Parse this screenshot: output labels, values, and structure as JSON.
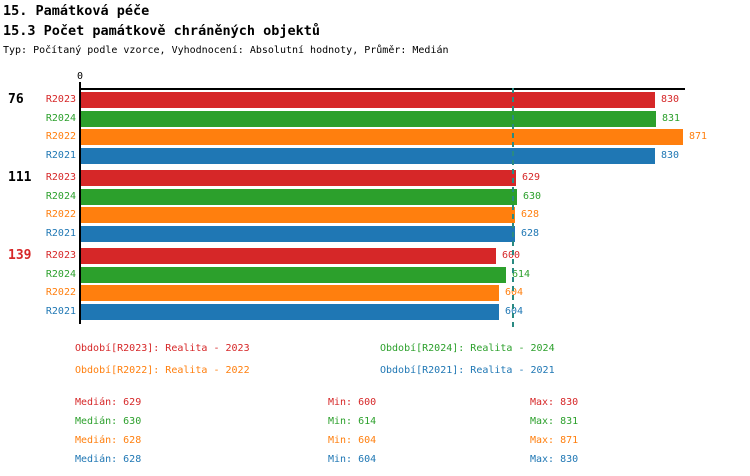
{
  "header": {
    "title1": "15. Památková péče",
    "title2": "15.3 Počet památkově chráněných objektů",
    "subtitle": "Typ: Počítaný podle vzorce, Vyhodnocení: Absolutní hodnoty, Průměr: Medián"
  },
  "colors": {
    "r2023": "#d62728",
    "r2024": "#2ca02c",
    "r2022": "#ff7f0e",
    "r2021": "#1f77b4",
    "median_line": "#2a8a82",
    "axis": "#000000"
  },
  "chart_data": {
    "type": "bar",
    "orientation": "horizontal",
    "title": "15.3 Počet památkově chráněných objektů",
    "x_axis": {
      "zero_label": "0",
      "min": 0,
      "max_extent": 875,
      "grid": false
    },
    "median_line_value": 628.5,
    "series_order": [
      "R2023",
      "R2024",
      "R2022",
      "R2021"
    ],
    "groups": [
      {
        "label": "76",
        "label_color": "#000000",
        "bars": [
          {
            "series": "R2023",
            "value": 830,
            "color": "#d62728"
          },
          {
            "series": "R2024",
            "value": 831,
            "color": "#2ca02c"
          },
          {
            "series": "R2022",
            "value": 871,
            "color": "#ff7f0e"
          },
          {
            "series": "R2021",
            "value": 830,
            "color": "#1f77b4"
          }
        ]
      },
      {
        "label": "111",
        "label_color": "#000000",
        "bars": [
          {
            "series": "R2023",
            "value": 629,
            "color": "#d62728"
          },
          {
            "series": "R2024",
            "value": 630,
            "color": "#2ca02c"
          },
          {
            "series": "R2022",
            "value": 628,
            "color": "#ff7f0e"
          },
          {
            "series": "R2021",
            "value": 628,
            "color": "#1f77b4"
          }
        ]
      },
      {
        "label": "139",
        "label_color": "#d62728",
        "bars": [
          {
            "series": "R2023",
            "value": 600,
            "color": "#d62728"
          },
          {
            "series": "R2024",
            "value": 614,
            "color": "#2ca02c"
          },
          {
            "series": "R2022",
            "value": 604,
            "color": "#ff7f0e"
          },
          {
            "series": "R2021",
            "value": 604,
            "color": "#1f77b4"
          }
        ]
      }
    ]
  },
  "legend": [
    {
      "text": "Období[R2023]: Realita - 2023",
      "color": "#d62728"
    },
    {
      "text": "Období[R2024]: Realita - 2024",
      "color": "#2ca02c"
    },
    {
      "text": "Období[R2022]: Realita - 2022",
      "color": "#ff7f0e"
    },
    {
      "text": "Období[R2021]: Realita - 2021",
      "color": "#1f77b4"
    }
  ],
  "stats": [
    {
      "median": "Medián: 629",
      "min": "Min: 600",
      "max": "Max: 830",
      "color": "#d62728"
    },
    {
      "median": "Medián: 630",
      "min": "Min: 614",
      "max": "Max: 831",
      "color": "#2ca02c"
    },
    {
      "median": "Medián: 628",
      "min": "Min: 604",
      "max": "Max: 871",
      "color": "#ff7f0e"
    },
    {
      "median": "Medián: 628",
      "min": "Min: 604",
      "max": "Max: 830",
      "color": "#1f77b4"
    }
  ]
}
